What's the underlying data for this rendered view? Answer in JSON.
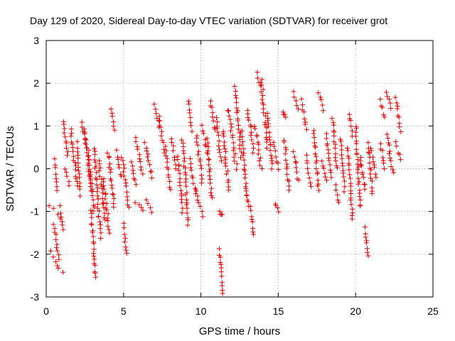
{
  "chart_data": {
    "type": "scatter",
    "title": "Day 129 of 2020, Sidereal Day-to-day VTEC variation (SDTVAR) for receiver grot",
    "xlabel": "GPS time / hours",
    "ylabel": "SDTVAR / TECUs",
    "xlim": [
      0,
      25
    ],
    "ylim": [
      -3,
      3
    ],
    "xticks": [
      0,
      5,
      10,
      15,
      20,
      25
    ],
    "yticks": [
      -3,
      -2,
      -1,
      0,
      1,
      2,
      3
    ],
    "xtick_labels": [
      "0",
      "5",
      "10",
      "15",
      "20",
      "25"
    ],
    "ytick_labels": [
      "-3",
      "-2",
      "-1",
      "0",
      "1",
      "2",
      "3"
    ],
    "grid": true,
    "marker": "plus",
    "color": "#e00000",
    "series": [
      {
        "name": "SDTVAR",
        "tracks": [
          [
            0.15,
            1.0,
            -0.85,
            -1.2
          ],
          [
            0.25,
            1.0,
            -1.95,
            -2.45
          ],
          [
            0.5,
            0.8,
            -1.3,
            -2.1
          ],
          [
            0.55,
            0.7,
            0.2,
            -0.5
          ],
          [
            0.9,
            1.1,
            -0.9,
            -1.4
          ],
          [
            1.1,
            1.4,
            1.1,
            0.3
          ],
          [
            1.2,
            1.5,
            0.0,
            -0.4
          ],
          [
            1.6,
            2.0,
            0.9,
            -0.4
          ],
          [
            2.0,
            2.2,
            0.6,
            -0.6
          ],
          [
            2.3,
            2.6,
            1.1,
            0.5
          ],
          [
            2.5,
            2.9,
            0.9,
            -0.5
          ],
          [
            2.7,
            3.1,
            0.4,
            -1.0
          ],
          [
            2.9,
            3.2,
            -1.0,
            -2.55
          ],
          [
            3.1,
            3.5,
            0.5,
            -1.6
          ],
          [
            3.4,
            3.8,
            0.2,
            -1.2
          ],
          [
            3.7,
            4.1,
            -0.2,
            -1.5
          ],
          [
            4.0,
            4.4,
            0.4,
            -0.9
          ],
          [
            4.2,
            4.4,
            1.4,
            0.9
          ],
          [
            4.5,
            4.9,
            0.4,
            -0.2
          ],
          [
            4.9,
            5.3,
            0.3,
            -0.9
          ],
          [
            5.0,
            5.2,
            -1.3,
            -2.0
          ],
          [
            5.5,
            5.8,
            0.2,
            -0.4
          ],
          [
            5.8,
            6.2,
            0.7,
            -0.1
          ],
          [
            5.8,
            6.3,
            -0.8,
            -1.0
          ],
          [
            6.4,
            6.8,
            0.6,
            -0.2
          ],
          [
            6.5,
            6.8,
            -0.7,
            -1.0
          ],
          [
            7.0,
            7.3,
            1.5,
            1.0
          ],
          [
            7.3,
            7.6,
            1.2,
            0.4
          ],
          [
            7.7,
            8.0,
            0.5,
            -0.5
          ],
          [
            8.1,
            8.4,
            0.7,
            0.0
          ],
          [
            8.5,
            8.8,
            0.3,
            -1.0
          ],
          [
            8.8,
            9.2,
            0.7,
            -1.3
          ],
          [
            9.2,
            9.4,
            1.6,
            0.9
          ],
          [
            9.3,
            9.7,
            0.2,
            -0.6
          ],
          [
            9.7,
            10.1,
            0.8,
            -0.3
          ],
          [
            9.7,
            10.1,
            -0.5,
            -1.1
          ],
          [
            10.1,
            10.4,
            1.0,
            0.4
          ],
          [
            10.4,
            10.7,
            0.7,
            -0.7
          ],
          [
            10.6,
            10.9,
            1.6,
            0.9
          ],
          [
            11.0,
            11.3,
            1.2,
            0.2
          ],
          [
            11.2,
            11.4,
            -1.0,
            -1.1
          ],
          [
            11.2,
            11.4,
            -1.9,
            -2.9
          ],
          [
            11.4,
            11.8,
            0.9,
            -0.5
          ],
          [
            11.8,
            12.3,
            1.4,
            0.0
          ],
          [
            12.2,
            12.6,
            1.9,
            0.3
          ],
          [
            12.6,
            13.0,
            0.9,
            -0.6
          ],
          [
            12.9,
            13.1,
            -0.5,
            -0.9
          ],
          [
            13.0,
            13.4,
            1.4,
            0.4
          ],
          [
            13.2,
            13.4,
            -0.9,
            -1.55
          ],
          [
            13.6,
            13.9,
            2.25,
            1.8
          ],
          [
            13.5,
            13.9,
            1.0,
            0.0
          ],
          [
            13.9,
            14.3,
            2.1,
            0.5
          ],
          [
            14.3,
            14.6,
            1.3,
            0.0
          ],
          [
            14.7,
            15.0,
            0.6,
            0.0
          ],
          [
            14.8,
            15.0,
            -0.8,
            -1.0
          ],
          [
            15.3,
            15.5,
            1.35,
            1.2
          ],
          [
            15.4,
            15.7,
            0.7,
            -0.5
          ],
          [
            16.0,
            16.3,
            1.8,
            1.4
          ],
          [
            16.0,
            16.3,
            0.4,
            -0.3
          ],
          [
            16.5,
            16.8,
            1.6,
            0.9
          ],
          [
            16.8,
            17.1,
            0.3,
            -0.4
          ],
          [
            17.3,
            17.6,
            0.9,
            -0.5
          ],
          [
            17.6,
            17.9,
            1.8,
            1.4
          ],
          [
            17.8,
            18.1,
            0.2,
            -0.3
          ],
          [
            18.1,
            18.4,
            0.8,
            -0.2
          ],
          [
            18.5,
            18.8,
            1.2,
            0.0
          ],
          [
            18.7,
            18.9,
            -0.4,
            -0.8
          ],
          [
            19.0,
            19.3,
            0.7,
            -0.5
          ],
          [
            19.5,
            19.8,
            0.5,
            -1.2
          ],
          [
            19.6,
            19.8,
            1.3,
            0.8
          ],
          [
            20.0,
            20.3,
            1.0,
            -0.9
          ],
          [
            20.3,
            20.6,
            0.3,
            -0.5
          ],
          [
            20.6,
            20.8,
            -1.4,
            -2.05
          ],
          [
            20.8,
            21.1,
            0.6,
            -0.6
          ],
          [
            21.0,
            21.3,
            0.5,
            -0.2
          ],
          [
            21.6,
            21.9,
            1.6,
            1.2
          ],
          [
            21.6,
            21.9,
            0.6,
            0.0
          ],
          [
            22.0,
            22.3,
            1.8,
            1.4
          ],
          [
            22.0,
            22.4,
            0.8,
            -0.1
          ],
          [
            22.6,
            22.9,
            1.65,
            0.9
          ],
          [
            22.6,
            22.9,
            0.6,
            0.2
          ]
        ]
      }
    ]
  }
}
